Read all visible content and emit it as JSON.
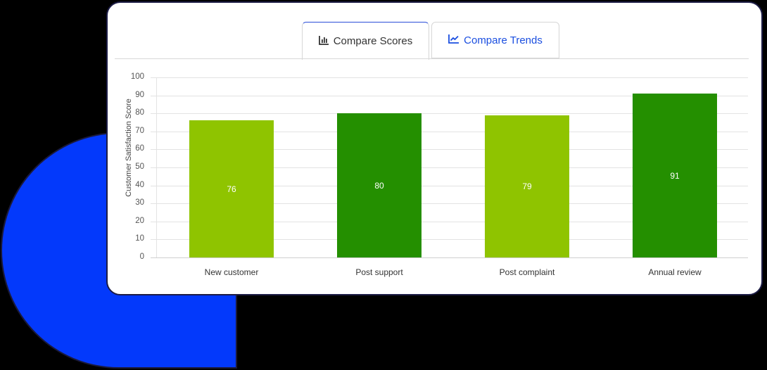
{
  "tabs": [
    {
      "label": "Compare Scores",
      "icon": "bar-chart-icon",
      "active": true
    },
    {
      "label": "Compare Trends",
      "icon": "line-chart-icon",
      "active": false
    }
  ],
  "colors": {
    "light_green": "#8fc400",
    "dark_green": "#248f00",
    "blob_blue": "#0339fb",
    "tab_active_accent": "#2a4ed8",
    "tab_link": "#1a4ee0"
  },
  "chart_data": {
    "type": "bar",
    "title": "",
    "xlabel": "",
    "ylabel": "Customer Satisfaction Score",
    "categories": [
      "New customer",
      "Post support",
      "Post complaint",
      "Annual review"
    ],
    "values": [
      76,
      80,
      79,
      91
    ],
    "data_labels": [
      "76",
      "80",
      "79",
      "91"
    ],
    "bar_colors": [
      "#8fc400",
      "#248f00",
      "#8fc400",
      "#248f00"
    ],
    "ylim": [
      0,
      100
    ],
    "yticks": [
      "0",
      "10",
      "20",
      "30",
      "40",
      "50",
      "60",
      "70",
      "80",
      "90",
      "100"
    ],
    "grid": true,
    "legend": "none"
  }
}
